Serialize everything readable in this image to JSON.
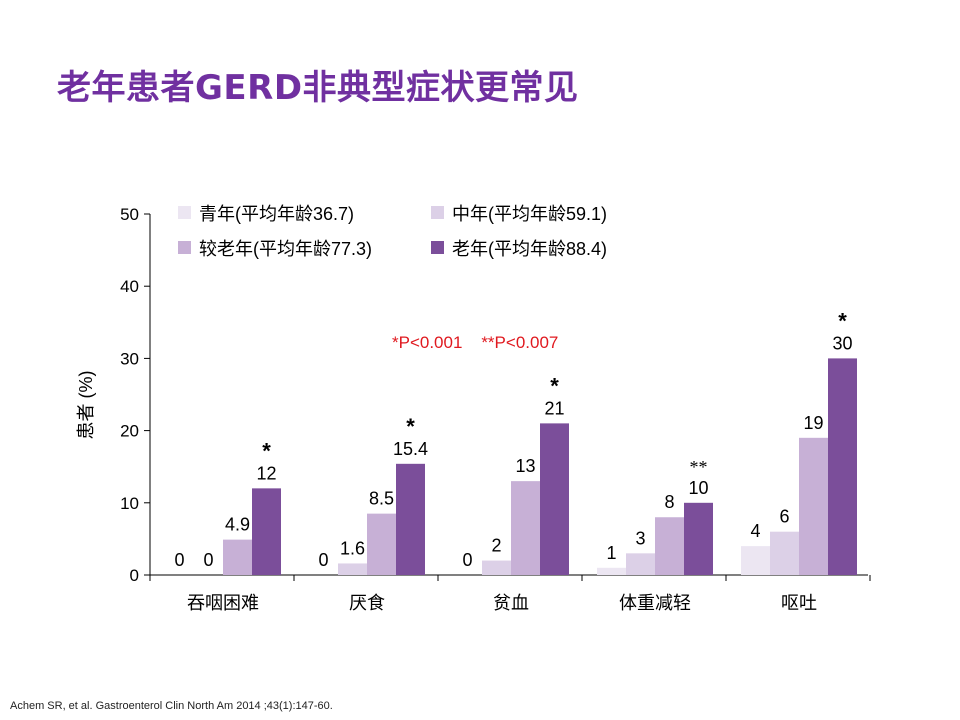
{
  "slide": {
    "title": "老年患者GERD非典型症状更常见",
    "citation": "Achem SR, et al. Gastroenterol Clin North Am 2014 ;43(1):147-60."
  },
  "chart_data": {
    "type": "bar",
    "categories": [
      "吞咽困难",
      "厌食",
      "贫血",
      "体重减轻",
      "呕吐"
    ],
    "series": [
      {
        "name": "青年(平均年龄36.7)",
        "color": "#ece6f2",
        "values": [
          0,
          0,
          0,
          1,
          4
        ]
      },
      {
        "name": "中年(平均年龄59.1)",
        "color": "#dcd0e7",
        "values": [
          0,
          1.6,
          2,
          3,
          6
        ]
      },
      {
        "name": "较老年(平均年龄77.3)",
        "color": "#c7b0d6",
        "values": [
          4.9,
          8.5,
          13,
          8,
          19
        ]
      },
      {
        "name": "老年(平均年龄88.4)",
        "color": "#7b4e9a",
        "values": [
          12,
          15.4,
          21,
          10,
          30
        ]
      }
    ],
    "data_labels": [
      [
        "0",
        "0",
        "0",
        "1",
        "4"
      ],
      [
        "0",
        "1.6",
        "2",
        "3",
        "6"
      ],
      [
        "4.9",
        "8.5",
        "13",
        "8",
        "19"
      ],
      [
        "12",
        "15.4",
        "21",
        "10",
        "30"
      ]
    ],
    "significance_marks": [
      {
        "category_index": 0,
        "series_index": 3,
        "mark": "*"
      },
      {
        "category_index": 1,
        "series_index": 3,
        "mark": "*"
      },
      {
        "category_index": 2,
        "series_index": 3,
        "mark": "*"
      },
      {
        "category_index": 3,
        "series_index": 3,
        "mark": "**"
      },
      {
        "category_index": 4,
        "series_index": 3,
        "mark": "*"
      }
    ],
    "ylabel": "患者 (%)",
    "ylim": [
      0,
      50
    ],
    "yticks": [
      0,
      10,
      20,
      30,
      40,
      50
    ],
    "annotation": "*P<0.001    **P<0.007",
    "annotation_color": "#e0191f",
    "legend_position": "top",
    "grid": false
  }
}
